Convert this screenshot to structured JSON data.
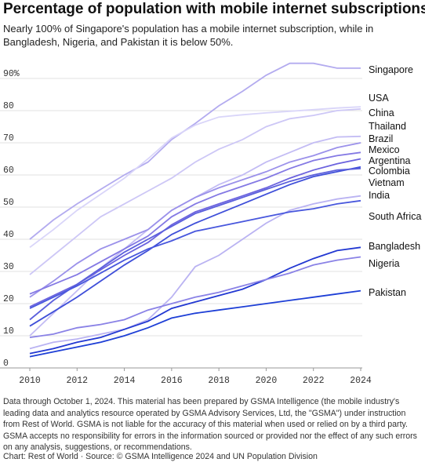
{
  "chart_data": {
    "type": "line",
    "title": "Percentage of population with mobile internet subscriptions",
    "subtitle": "Nearly 100% of Singapore's population has a mobile internet subscription, while in Bangladesh, Nigeria, and Pakistan it is below 50%.",
    "footnote": "Data through October 1, 2024. This material has been prepared by GSMA Intelligence (the mobile industry's leading data and analytics resource operated by GSMA Advisory Services, Ltd, the \"GSMA\") under instruction from Rest of World. GSMA is not liable for the accuracy of this material when used or relied on by a third party. GSMA accepts no responsibility for errors in the information sourced or provided nor the effect of any such errors on any analysis, suggestions, or recommendations.",
    "source": "Chart: Rest of World · Source: © GSMA Intelligence 2024 and UN Population Division",
    "x": [
      2010,
      2011,
      2012,
      2013,
      2014,
      2015,
      2016,
      2017,
      2018,
      2019,
      2020,
      2021,
      2022,
      2023,
      2024
    ],
    "xlim": [
      2010,
      2024
    ],
    "xticks": [
      2010,
      2012,
      2014,
      2016,
      2018,
      2020,
      2022,
      2024
    ],
    "ylim": [
      0,
      95
    ],
    "yticks": [
      0,
      10,
      20,
      30,
      40,
      50,
      60,
      70,
      80,
      {
        "value": 90,
        "label": "90%"
      }
    ],
    "grid": true,
    "series": [
      {
        "name": "Singapore",
        "color": "#b3abef",
        "values": [
          40,
          46,
          51,
          55.5,
          60,
          64,
          71,
          76,
          81.5,
          86,
          91,
          94.7,
          94.7,
          93.2,
          93.2
        ]
      },
      {
        "name": "USA",
        "color": "#d9d5f9",
        "values": [
          37.5,
          43,
          49,
          54,
          59,
          65,
          71.5,
          75.5,
          78,
          78.7,
          79.3,
          79.8,
          80.3,
          80.8,
          81.2
        ]
      },
      {
        "name": "China",
        "color": "#cdc7f6",
        "values": [
          29,
          35,
          41,
          47,
          51,
          55,
          59,
          64,
          68,
          71,
          75,
          77.5,
          78.5,
          80,
          80.5
        ]
      },
      {
        "name": "Thailand",
        "color": "#c3bcf4",
        "values": [
          10,
          17,
          24,
          31,
          37,
          43,
          49,
          53,
          57,
          60,
          64,
          67,
          70,
          71.8,
          72
        ]
      },
      {
        "name": "Brazil",
        "color": "#9b91ea",
        "values": [
          22,
          27,
          32.5,
          37,
          40,
          43,
          49,
          53,
          56,
          58.5,
          61,
          64,
          66,
          68.5,
          70
        ]
      },
      {
        "name": "Mexico",
        "color": "#8479e4",
        "values": [
          23,
          26,
          29,
          33,
          37,
          41,
          47,
          51,
          54,
          56.5,
          59,
          62,
          64.5,
          66,
          67
        ]
      },
      {
        "name": "Argentina",
        "color": "#6b62de",
        "values": [
          19,
          22.5,
          26,
          30.5,
          35,
          39,
          44.5,
          48.5,
          51,
          53.5,
          56,
          59,
          61.5,
          63.5,
          65
        ]
      },
      {
        "name": "Colombia",
        "color": "#3f4fd9",
        "values": [
          13,
          17.5,
          22,
          27,
          32,
          36.5,
          41.5,
          45,
          48,
          51,
          54,
          57,
          59.5,
          61,
          62.5
        ]
      },
      {
        "name": "Vietnam",
        "color": "#5b5fdc",
        "values": [
          15,
          21,
          26,
          31,
          36,
          40,
          44,
          48,
          50.5,
          53,
          55.5,
          58,
          60,
          61.5,
          62
        ]
      },
      {
        "name": "India",
        "color": "#bab3f2",
        "values": [
          6,
          8,
          9,
          10.5,
          12,
          15,
          22,
          31.5,
          35,
          40,
          45,
          49,
          51,
          52.5,
          53.5
        ]
      },
      {
        "name": "South Africa",
        "color": "#4857dd",
        "values": [
          18.5,
          22,
          25.5,
          29.5,
          33.5,
          37,
          39.5,
          42.5,
          44,
          45.5,
          47,
          48.5,
          49.5,
          51,
          52
        ]
      },
      {
        "name": "Bangladesh",
        "color": "#2238d2",
        "values": [
          4.5,
          6,
          8,
          9.5,
          12,
          14.5,
          18.5,
          20.5,
          22.5,
          24.5,
          27.5,
          31,
          34,
          36.5,
          37.5
        ]
      },
      {
        "name": "Nigeria",
        "color": "#8a82e6",
        "values": [
          9.5,
          10.5,
          12.5,
          13.5,
          15,
          18,
          20,
          22,
          23.5,
          25.5,
          27.5,
          29.5,
          32,
          33.5,
          34.5
        ]
      },
      {
        "name": "Pakistan",
        "color": "#1e3fd6",
        "values": [
          3.5,
          5,
          6.5,
          8,
          10,
          12.5,
          15.5,
          17,
          18,
          19,
          20,
          21,
          22,
          23,
          24
        ]
      }
    ]
  }
}
